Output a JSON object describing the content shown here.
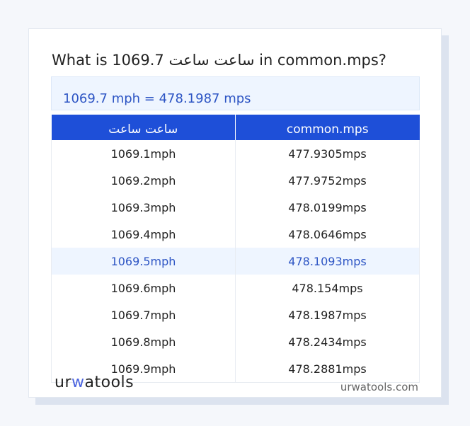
{
  "title": "What is 1069.7 ساعت ساعت in common.mps?",
  "result": "1069.7 mph = 478.1987 mps",
  "table": {
    "headers": [
      "ساعت ساعت",
      "common.mps"
    ],
    "rows": [
      [
        "1069.1mph",
        "477.9305mps"
      ],
      [
        "1069.2mph",
        "477.9752mps"
      ],
      [
        "1069.3mph",
        "478.0199mps"
      ],
      [
        "1069.4mph",
        "478.0646mps"
      ],
      [
        "1069.5mph",
        "478.1093mps"
      ],
      [
        "1069.6mph",
        "478.154mps"
      ],
      [
        "1069.7mph",
        "478.1987mps"
      ],
      [
        "1069.8mph",
        "478.2434mps"
      ],
      [
        "1069.9mph",
        "478.2881mps"
      ]
    ],
    "highlighted_row": 4
  },
  "footer": {
    "logo_a": "ur",
    "logo_b": "w",
    "logo_c": "atools",
    "site": "urwatools.com"
  },
  "colors": {
    "accent": "#1e4fd8",
    "highlight_bg": "#eef5ff",
    "highlight_text": "#2d55c4"
  }
}
